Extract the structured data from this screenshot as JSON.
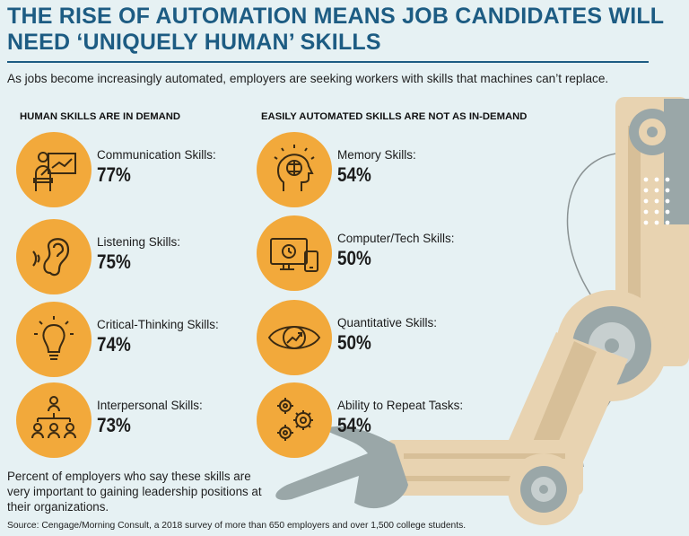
{
  "title_line1": "THE RISE OF AUTOMATION MEANS JOB CANDIDATES WILL",
  "title_line2": "NEED ‘UNIQUELY HUMAN’ SKILLS",
  "subtitle": "As jobs become increasingly automated, employers are seeking workers with skills that machines can’t replace.",
  "human_heading": "HUMAN SKILLS ARE IN DEMAND",
  "automated_heading": "EASILY AUTOMATED SKILLS  ARE NOT AS IN-DEMAND",
  "note": "Percent of employers who say these skills are very important to gaining leadership positions at their organizations.",
  "source": "Source: Cengage/Morning Consult, a 2018 survey of more than 650 employers and over 1,500 college students.",
  "colors": {
    "circle": "#f2a93b",
    "title": "#1d5c83",
    "background": "#e6f1f3",
    "robot_tan": "#e8d3b1",
    "robot_gray": "#9aa7a8"
  },
  "chart_data": {
    "type": "table",
    "groups": [
      {
        "heading": "HUMAN SKILLS ARE IN DEMAND",
        "items": [
          {
            "label": "Communication Skills:",
            "value_text": "77%",
            "value": 77,
            "icon": "presentation-icon"
          },
          {
            "label": "Listening Skills:",
            "value_text": "75%",
            "value": 75,
            "icon": "ear-icon"
          },
          {
            "label": "Critical-Thinking Skills:",
            "value_text": "74%",
            "value": 74,
            "icon": "lightbulb-icon"
          },
          {
            "label": "Interpersonal Skills:",
            "value_text": "73%",
            "value": 73,
            "icon": "people-network-icon"
          }
        ]
      },
      {
        "heading": "EASILY AUTOMATED SKILLS  ARE NOT AS IN-DEMAND",
        "items": [
          {
            "label": "Memory Skills:",
            "value_text": "54%",
            "value": 54,
            "icon": "brain-head-icon"
          },
          {
            "label": "Computer/Tech Skills:",
            "value_text": "50%",
            "value": 50,
            "icon": "computer-devices-icon"
          },
          {
            "label": "Quantitative Skills:",
            "value_text": "50%",
            "value": 50,
            "icon": "eye-chart-icon"
          },
          {
            "label": "Ability to Repeat Tasks:",
            "value_text": "54%",
            "value": 54,
            "icon": "gears-icon"
          }
        ]
      }
    ]
  }
}
